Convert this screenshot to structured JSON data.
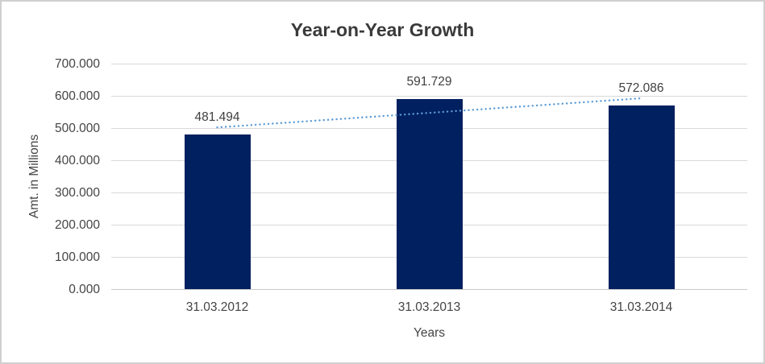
{
  "colors": {
    "bar": "#002060",
    "trendline": "#5B9BD5",
    "gridline": "#D9D9D9",
    "axis_line": "#C9C9C9",
    "tick_text": "#444444",
    "label_text": "#404040",
    "title_text": "#3A3A3A",
    "border": "#CFCFCF"
  },
  "chart_data": {
    "type": "bar",
    "title": "Year-on-Year Growth",
    "xlabel": "Years",
    "ylabel": "Amt. in Millions",
    "categories": [
      "31.03.2012",
      "31.03.2013",
      "31.03.2014"
    ],
    "values": [
      481.494,
      591.729,
      572.086
    ],
    "data_labels": [
      "481.494",
      "591.729",
      "572.086"
    ],
    "ylim": [
      0,
      700
    ],
    "ytick_step": 100,
    "ytick_labels": [
      "0.000",
      "100.000",
      "200.000",
      "300.000",
      "400.000",
      "500.000",
      "600.000",
      "700.000"
    ],
    "grid": true,
    "legend": "none",
    "trendline": {
      "type": "linear",
      "style": "dotted",
      "start_value": 503.2,
      "end_value": 593.7
    }
  }
}
